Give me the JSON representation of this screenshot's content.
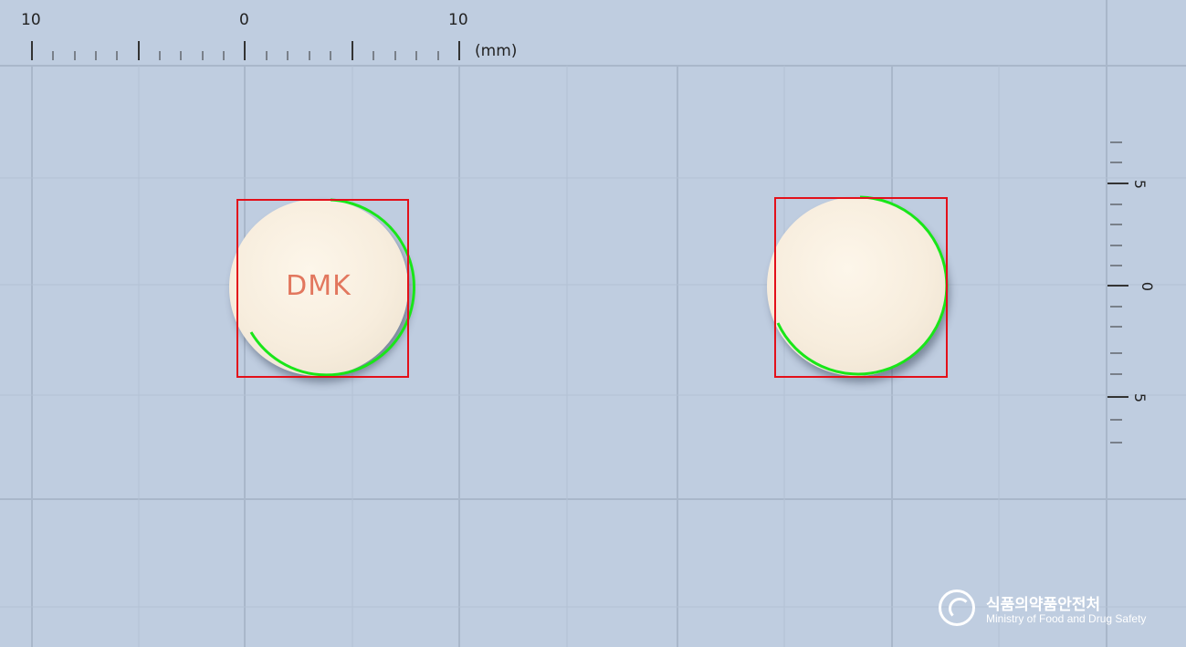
{
  "ruler_top": {
    "labels": [
      "10",
      "0",
      "10"
    ],
    "unit": "(mm)"
  },
  "ruler_right": {
    "labels": [
      "5",
      "0",
      "5"
    ]
  },
  "tablets": [
    {
      "imprint": "DMK"
    },
    {
      "imprint": ""
    }
  ],
  "logo": {
    "korean": "식품의약품안전처",
    "english": "Ministry of Food and Drug Safety"
  },
  "colors": {
    "background": "#bfcde0",
    "grid": "#a9b7ca",
    "bounding_box": "#e3101a",
    "contour": "#19e619",
    "tablet": "#f7eddd"
  }
}
